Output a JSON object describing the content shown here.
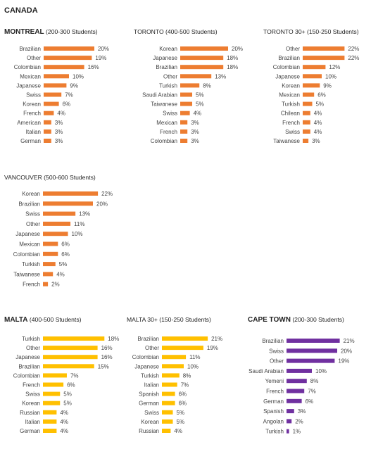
{
  "page": {
    "country_label": "CANADA"
  },
  "colors": {
    "orange": "#ED7D31",
    "yellow": "#FFC000",
    "purple": "#7030A0"
  },
  "chart_data": [
    {
      "type": "bar",
      "orientation": "horizontal",
      "title_bold": "MONTREAL",
      "title_rest": " (200-300 Students)",
      "categories": [
        "Brazilian",
        "Other",
        "Colombian",
        "Mexican",
        "Japanese",
        "Swiss",
        "Korean",
        "French",
        "American",
        "Italian",
        "German"
      ],
      "values": [
        20,
        19,
        16,
        10,
        9,
        7,
        6,
        4,
        3,
        3,
        3
      ],
      "labels": [
        "20%",
        "19%",
        "16%",
        "10%",
        "9%",
        "7%",
        "6%",
        "4%",
        "3%",
        "3%",
        "3%"
      ],
      "color": "#ED7D31"
    },
    {
      "type": "bar",
      "orientation": "horizontal",
      "title_bold": "",
      "title_rest": "TORONTO (400-500 Students)",
      "categories": [
        "Korean",
        "Japanese",
        "Brazilian",
        "Other",
        "Turkish",
        "Saudi Arabian",
        "Taiwanese",
        "Swiss",
        "Mexican",
        "French",
        "Colombian"
      ],
      "values": [
        20,
        18,
        18,
        13,
        8,
        5,
        5,
        4,
        3,
        3,
        3
      ],
      "labels": [
        "20%",
        "18%",
        "18%",
        "13%",
        "8%",
        "5%",
        "5%",
        "4%",
        "3%",
        "3%",
        "3%"
      ],
      "color": "#ED7D31"
    },
    {
      "type": "bar",
      "orientation": "horizontal",
      "title_bold": "",
      "title_rest": "TORONTO 30+ (150-250 Students)",
      "categories": [
        "Other",
        "Brazilian",
        "Colombian",
        "Japanese",
        "Korean",
        "Mexican",
        "Turkish",
        "Chilean",
        "French",
        "Swiss",
        "Taiwanese"
      ],
      "values": [
        22,
        22,
        12,
        10,
        9,
        6,
        5,
        4,
        4,
        4,
        3
      ],
      "labels": [
        "22%",
        "22%",
        "12%",
        "10%",
        "9%",
        "6%",
        "5%",
        "4%",
        "4%",
        "4%",
        "3%"
      ],
      "color": "#ED7D31"
    },
    {
      "type": "bar",
      "orientation": "horizontal",
      "title_bold": "",
      "title_rest": "VANCOUVER (500-600 Students)",
      "categories": [
        "Korean",
        "Brazilian",
        "Swiss",
        "Other",
        "Japanese",
        "Mexican",
        "Colombian",
        "Turkish",
        "Taiwanese",
        "French"
      ],
      "values": [
        22,
        20,
        13,
        11,
        10,
        6,
        6,
        5,
        4,
        2
      ],
      "labels": [
        "22%",
        "20%",
        "13%",
        "11%",
        "10%",
        "6%",
        "6%",
        "5%",
        "4%",
        "2%"
      ],
      "color": "#ED7D31"
    },
    {
      "type": "bar",
      "orientation": "horizontal",
      "title_bold": "MALTA",
      "title_rest": " (400-500 Students)",
      "categories": [
        "Turkish",
        "Other",
        "Japanese",
        "Brazilian",
        "Colombian",
        "French",
        "Swiss",
        "Korean",
        "Russian",
        "Italian",
        "German"
      ],
      "values": [
        18,
        16,
        16,
        15,
        7,
        6,
        5,
        5,
        4,
        4,
        4
      ],
      "labels": [
        "18%",
        "16%",
        "16%",
        "15%",
        "7%",
        "6%",
        "5%",
        "5%",
        "4%",
        "4%",
        "4%"
      ],
      "color": "#FFC000"
    },
    {
      "type": "bar",
      "orientation": "horizontal",
      "title_bold": "",
      "title_rest": "MALTA 30+ (150-250 Students)",
      "categories": [
        "Brazilian",
        "Other",
        "Colombian",
        "Japanese",
        "Turkish",
        "Italian",
        "Spanish",
        "German",
        "Swiss",
        "Korean",
        "Russian"
      ],
      "values": [
        21,
        19,
        11,
        10,
        8,
        7,
        6,
        6,
        5,
        5,
        4
      ],
      "labels": [
        "21%",
        "19%",
        "11%",
        "10%",
        "8%",
        "7%",
        "6%",
        "6%",
        "5%",
        "5%",
        "4%"
      ],
      "color": "#FFC000"
    },
    {
      "type": "bar",
      "orientation": "horizontal",
      "title_bold": "CAPE TOWN",
      "title_rest": " (200-300 Students)",
      "categories": [
        "Brazilian",
        "Swiss",
        "Other",
        "Saudi Arabian",
        "Yemeni",
        "French",
        "German",
        "Spanish",
        "Angolan",
        "Turkish"
      ],
      "values": [
        21,
        20,
        19,
        10,
        8,
        7,
        6,
        3,
        2,
        1
      ],
      "labels": [
        "21%",
        "20%",
        "19%",
        "10%",
        "8%",
        "7%",
        "6%",
        "3%",
        "2%",
        "1%"
      ],
      "color": "#7030A0"
    }
  ]
}
